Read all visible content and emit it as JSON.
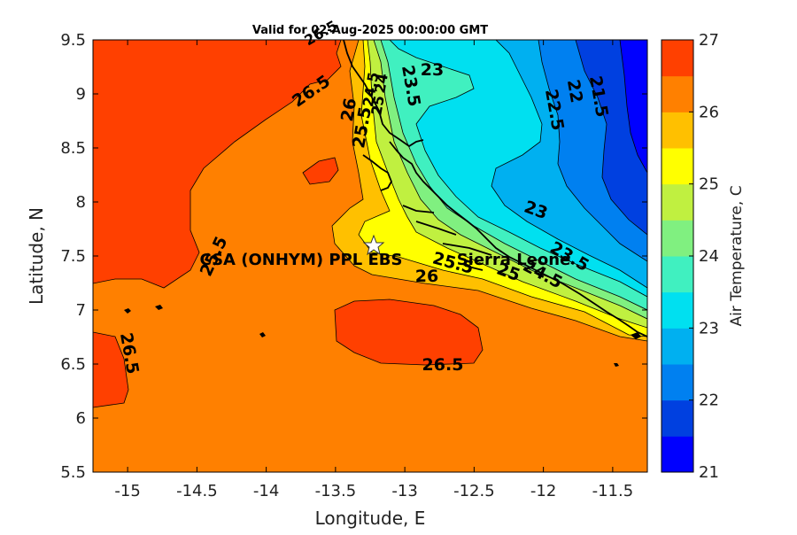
{
  "title": "Valid for 02-Aug-2025 00:00:00 GMT",
  "map": {
    "xlabel": "Longitude, E",
    "ylabel": "Latitude, N",
    "x_range": [
      -15.25,
      -11.25
    ],
    "y_range": [
      5.5,
      9.5
    ],
    "x_ticks": [
      "-15",
      "-14.5",
      "-14",
      "-13.5",
      "-13",
      "-12.5",
      "-12",
      "-11.5"
    ],
    "y_ticks": [
      "5.5",
      "6",
      "6.5",
      "7",
      "7.5",
      "8",
      "8.5",
      "9",
      "9.5"
    ],
    "marker_label": "CSA (ONHYM) PPL EBS",
    "marker_position": [
      -13.25,
      7.6
    ],
    "region_label": "Sierra Leone",
    "contour_labels": [
      "26.5",
      "26",
      "25.5",
      "25",
      "24.5",
      "24",
      "23.5",
      "23",
      "22.5",
      "22",
      "21.5",
      "26.5",
      "26.5",
      "26",
      "25.5",
      "25",
      "24.5",
      "23",
      "23.5",
      "25.5",
      "26.5"
    ]
  },
  "colorbar": {
    "label": "Air Temperature, C",
    "range": [
      21,
      27
    ],
    "ticks": [
      "21",
      "22",
      "23",
      "24",
      "25",
      "26",
      "27"
    ],
    "colors": [
      "#0000ff",
      "#0040e0",
      "#0080f0",
      "#00b0f0",
      "#00e0f0",
      "#40f0c0",
      "#80f080",
      "#c0f040",
      "#ffff00",
      "#ffc000",
      "#ff8000",
      "#ff4000"
    ]
  }
}
